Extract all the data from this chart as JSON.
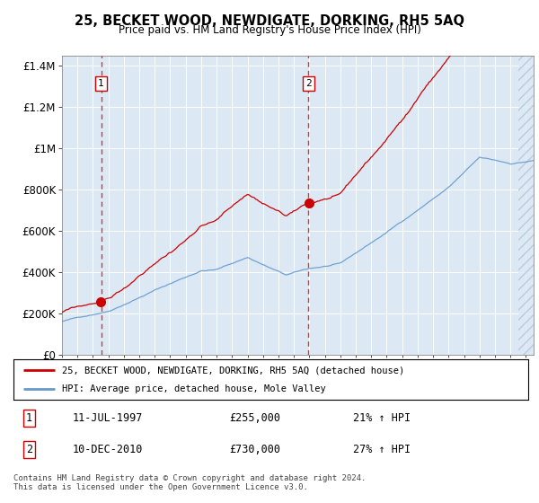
{
  "title": "25, BECKET WOOD, NEWDIGATE, DORKING, RH5 5AQ",
  "subtitle": "Price paid vs. HM Land Registry's House Price Index (HPI)",
  "plot_bg_color": "#dce9f5",
  "red_line_color": "#cc0000",
  "blue_line_color": "#6699cc",
  "dashed_line_color": "#dd3333",
  "marker_color": "#cc0000",
  "sale1_date_num": 1997.53,
  "sale1_price": 255000,
  "sale2_date_num": 2010.94,
  "sale2_price": 730000,
  "xmin": 1995.0,
  "xmax": 2025.5,
  "ymin": 0,
  "ymax": 1450000,
  "yticks": [
    0,
    200000,
    400000,
    600000,
    800000,
    1000000,
    1200000,
    1400000
  ],
  "ytick_labels": [
    "£0",
    "£200K",
    "£400K",
    "£600K",
    "£800K",
    "£1M",
    "£1.2M",
    "£1.4M"
  ],
  "legend_label_red": "25, BECKET WOOD, NEWDIGATE, DORKING, RH5 5AQ (detached house)",
  "legend_label_blue": "HPI: Average price, detached house, Mole Valley",
  "annotation1_label": "1",
  "annotation1_date": "11-JUL-1997",
  "annotation1_price": "£255,000",
  "annotation1_hpi": "21% ↑ HPI",
  "annotation2_label": "2",
  "annotation2_date": "10-DEC-2010",
  "annotation2_price": "£730,000",
  "annotation2_hpi": "27% ↑ HPI",
  "footer": "Contains HM Land Registry data © Crown copyright and database right 2024.\nThis data is licensed under the Open Government Licence v3.0."
}
